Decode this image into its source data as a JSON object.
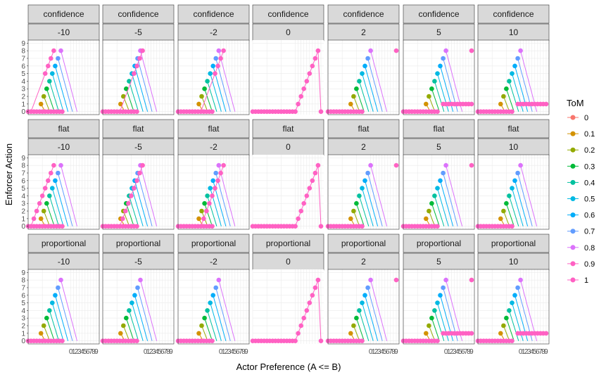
{
  "chart_data": {
    "type": "line",
    "facet_rows": [
      "confidence",
      "flat",
      "proportional"
    ],
    "facet_cols": [
      "-10",
      "-5",
      "-2",
      "0",
      "2",
      "5",
      "10"
    ],
    "xlabel": "Actor Preference (A <= B)",
    "ylabel": "Enforcer Action",
    "x_ticks": [
      "0",
      "1",
      "2",
      "3",
      "4",
      "5",
      "6",
      "7",
      "8",
      "9"
    ],
    "y_ticks": [
      "0",
      "1",
      "2",
      "3",
      "4",
      "5",
      "6",
      "7",
      "8",
      "9"
    ],
    "xlim": [
      -15,
      10
    ],
    "ylim": [
      -0.4,
      9.4
    ],
    "grid": true,
    "legend_position": "right",
    "legend": {
      "title": "ToM",
      "entries": [
        {
          "label": "0",
          "color": "#F8766D"
        },
        {
          "label": "0.1",
          "color": "#D39200"
        },
        {
          "label": "0.2",
          "color": "#93AA00"
        },
        {
          "label": "0.3",
          "color": "#00BA38"
        },
        {
          "label": "0.4",
          "color": "#00C19F"
        },
        {
          "label": "0.5",
          "color": "#00B9E3"
        },
        {
          "label": "0.6",
          "color": "#00ADFA"
        },
        {
          "label": "0.7",
          "color": "#619CFF"
        },
        {
          "label": "0.8",
          "color": "#DB72FB"
        },
        {
          "label": "0.9",
          "color": "#FF61C3"
        },
        {
          "label": "1",
          "color": "#FF61C3"
        }
      ]
    },
    "series_note_colors_order": [
      "0.1",
      "0.2",
      "0.3",
      "0.4",
      "0.5",
      "0.6",
      "0.7",
      "0.8",
      "0.9",
      "1"
    ]
  }
}
